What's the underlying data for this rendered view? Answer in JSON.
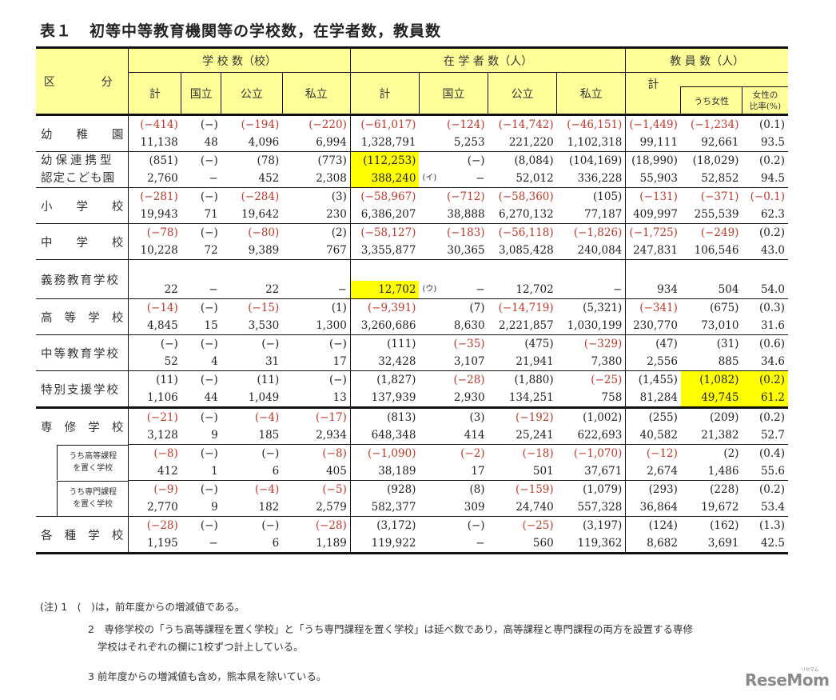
{
  "title": {
    "number": "表１",
    "text": "初等中等教育機関等の学校数，在学者数，教員数"
  },
  "header": {
    "category": "区　　分",
    "groups": {
      "schools": "学 校 数（校）",
      "students": "在 学 者 数（人）",
      "teachers": "教 員 数（人）"
    },
    "cols": {
      "total": "計",
      "national": "国立",
      "public": "公立",
      "private": "私立",
      "female": "うち女性",
      "female_ratio_1": "女性の",
      "female_ratio_2": "比率(%)"
    }
  },
  "rows": [
    {
      "label": "幼　稚　園",
      "lines": 1,
      "change": [
        "(−414)",
        "(−)",
        "(−194)",
        "(−220)",
        "(−61,017)",
        "(−124)",
        "(−14,742)",
        "(−46,151)",
        "(−1,449)",
        "(−1,234)",
        "(0.1)"
      ],
      "red": [
        1,
        0,
        1,
        1,
        1,
        1,
        1,
        1,
        1,
        1,
        0
      ],
      "value": [
        "11,138",
        "48",
        "4,096",
        "6,994",
        "1,328,791",
        "5,253",
        "221,220",
        "1,102,318",
        "99,111",
        "92,661",
        "93.5"
      ]
    },
    {
      "label": "幼保連携型",
      "label2": "認定こども園",
      "lines": 2,
      "change": [
        "(851)",
        "(−)",
        "(78)",
        "(773)",
        "(112,253)",
        "(−)",
        "(8,084)",
        "(104,169)",
        "(18,990)",
        "(18,029)",
        "(0.2)"
      ],
      "red": [
        0,
        0,
        0,
        0,
        0,
        0,
        0,
        0,
        0,
        0,
        0
      ],
      "value": [
        "2,760",
        "−",
        "452",
        "2,308",
        "388,240",
        "−",
        "52,012",
        "336,228",
        "55,903",
        "52,852",
        "94.5"
      ],
      "mark": "(イ)"
    },
    {
      "label": "小　学　校",
      "lines": 1,
      "change": [
        "(−281)",
        "(−)",
        "(−284)",
        "(3)",
        "(−58,967)",
        "(−712)",
        "(−58,360)",
        "(105)",
        "(−131)",
        "(−371)",
        "(−0.1)"
      ],
      "red": [
        1,
        0,
        1,
        0,
        1,
        1,
        1,
        0,
        1,
        1,
        1
      ],
      "value": [
        "19,943",
        "71",
        "19,642",
        "230",
        "6,386,207",
        "38,888",
        "6,270,132",
        "77,187",
        "409,997",
        "255,539",
        "62.3"
      ]
    },
    {
      "label": "中　学　校",
      "lines": 1,
      "change": [
        "(−78)",
        "(−)",
        "(−80)",
        "(2)",
        "(−58,127)",
        "(−183)",
        "(−56,118)",
        "(−1,826)",
        "(−1,725)",
        "(−249)",
        "(0.2)"
      ],
      "red": [
        1,
        0,
        1,
        0,
        1,
        1,
        1,
        1,
        1,
        1,
        0
      ],
      "value": [
        "10,228",
        "72",
        "9,389",
        "767",
        "3,355,877",
        "30,365",
        "3,085,428",
        "240,084",
        "247,831",
        "106,546",
        "43.0"
      ]
    },
    {
      "label": "義務教育学校",
      "lines": 1,
      "change": [
        "",
        "",
        "",
        "",
        "",
        "",
        "",
        "",
        "",
        "",
        ""
      ],
      "red": [
        0,
        0,
        0,
        0,
        0,
        0,
        0,
        0,
        0,
        0,
        0
      ],
      "value": [
        "22",
        "−",
        "22",
        "−",
        "12,702",
        "−",
        "12,702",
        "−",
        "934",
        "504",
        "54.0"
      ],
      "mark": "(ウ)"
    },
    {
      "label": "高　等　学　校",
      "lines": 1,
      "change": [
        "(−14)",
        "(−)",
        "(−15)",
        "(1)",
        "(−9,391)",
        "(7)",
        "(−14,719)",
        "(5,321)",
        "(−341)",
        "(675)",
        "(0.3)"
      ],
      "red": [
        1,
        0,
        1,
        0,
        1,
        0,
        1,
        0,
        1,
        0,
        0
      ],
      "value": [
        "4,845",
        "15",
        "3,530",
        "1,300",
        "3,260,686",
        "8,630",
        "2,221,857",
        "1,030,199",
        "230,770",
        "73,010",
        "31.6"
      ]
    },
    {
      "label": "中等教育学校",
      "lines": 1,
      "change": [
        "(−)",
        "(−)",
        "(−)",
        "(−)",
        "(111)",
        "(−35)",
        "(475)",
        "(−329)",
        "(47)",
        "(31)",
        "(0.6)"
      ],
      "red": [
        0,
        0,
        0,
        0,
        0,
        1,
        0,
        1,
        0,
        0,
        0
      ],
      "value": [
        "52",
        "4",
        "31",
        "17",
        "32,428",
        "3,107",
        "21,941",
        "7,380",
        "2,556",
        "885",
        "34.6"
      ]
    },
    {
      "label": "特別支援学校",
      "lines": 1,
      "change": [
        "(11)",
        "(−)",
        "(11)",
        "(−)",
        "(1,827)",
        "(−28)",
        "(1,880)",
        "(−25)",
        "(1,455)",
        "(1,082)",
        "(0.2)"
      ],
      "red": [
        0,
        0,
        0,
        0,
        0,
        1,
        0,
        1,
        0,
        0,
        0
      ],
      "value": [
        "1,106",
        "44",
        "1,049",
        "13",
        "137,939",
        "2,930",
        "134,251",
        "758",
        "81,284",
        "49,745",
        "61.2"
      ]
    },
    {
      "label": "専　修　学　校",
      "lines": 1,
      "change": [
        "(−21)",
        "(−)",
        "(−4)",
        "(−17)",
        "(813)",
        "(3)",
        "(−192)",
        "(1,002)",
        "(255)",
        "(209)",
        "(0.2)"
      ],
      "red": [
        1,
        0,
        1,
        1,
        0,
        0,
        1,
        0,
        0,
        0,
        0
      ],
      "value": [
        "3,128",
        "9",
        "185",
        "2,934",
        "648,348",
        "414",
        "25,241",
        "622,693",
        "40,582",
        "21,382",
        "52.7"
      ]
    },
    {
      "label": "うち高等課程",
      "label2": "を置く学校",
      "lines": 2,
      "sub": true,
      "change": [
        "(−8)",
        "(−)",
        "(−)",
        "(−8)",
        "(−1,090)",
        "(−2)",
        "(−18)",
        "(−1,070)",
        "(−12)",
        "(2)",
        "(0.4)"
      ],
      "red": [
        1,
        0,
        0,
        1,
        1,
        1,
        1,
        1,
        1,
        0,
        0
      ],
      "value": [
        "412",
        "1",
        "6",
        "405",
        "38,189",
        "17",
        "501",
        "37,671",
        "2,674",
        "1,486",
        "55.6"
      ]
    },
    {
      "label": "うち専門課程",
      "label2": "を置く学校",
      "lines": 2,
      "sub": true,
      "change": [
        "(−9)",
        "(−)",
        "(−4)",
        "(−5)",
        "(928)",
        "(8)",
        "(−159)",
        "(1,079)",
        "(293)",
        "(228)",
        "(0.2)"
      ],
      "red": [
        1,
        0,
        1,
        1,
        0,
        0,
        1,
        0,
        0,
        0,
        0
      ],
      "value": [
        "2,770",
        "9",
        "182",
        "2,579",
        "582,377",
        "309",
        "24,740",
        "557,328",
        "36,864",
        "19,672",
        "53.4"
      ]
    },
    {
      "label": "各　種　学　校",
      "lines": 1,
      "change": [
        "(−28)",
        "(−)",
        "(−)",
        "(−28)",
        "(3,172)",
        "(−)",
        "(−25)",
        "(3,197)",
        "(124)",
        "(162)",
        "(1.3)"
      ],
      "red": [
        1,
        0,
        0,
        1,
        0,
        0,
        1,
        0,
        0,
        0,
        0
      ],
      "value": [
        "1,195",
        "−",
        "6",
        "1,189",
        "119,922",
        "−",
        "560",
        "119,362",
        "8,682",
        "3,691",
        "42.5"
      ]
    }
  ],
  "notes": {
    "n1": "(注) 1　(　)は，前年度からの増減値である。",
    "n2a": "2　専修学校の「うち高等課程を置く学校」と「うち専門課程を置く学校」は延べ数であり，高等課程と専門課程の両方を設置する専修",
    "n2b": "学校はそれぞれの欄に1校ずつ計上している。",
    "n3": "3 前年度からの増減値も含め，熊本県を除いている。"
  },
  "logo": {
    "text": "ReseMom",
    "ruby": "リセマム"
  },
  "colors": {
    "header_bg": "#ffff99",
    "highlight": "#ffff00",
    "negative": "#c0392b"
  }
}
